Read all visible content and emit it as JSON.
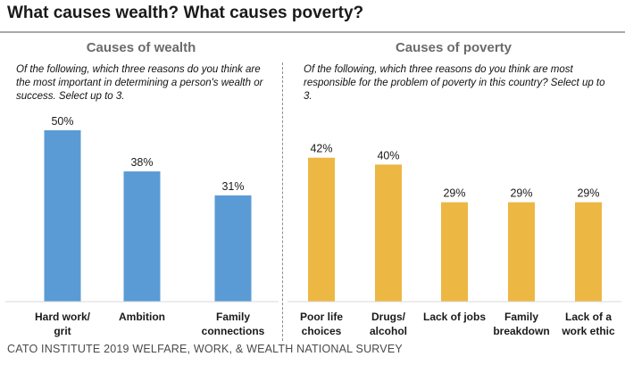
{
  "title": "What causes wealth? What causes poverty?",
  "source": "CATO INSTITUTE 2019 WELFARE, WORK, & WEALTH NATIONAL SURVEY",
  "colors": {
    "wealth_bar": "#5b9bd5",
    "poverty_bar": "#edb744",
    "divider": "#8c8c8c"
  },
  "chart_data": [
    {
      "type": "bar",
      "title": "Causes of wealth",
      "subtitle": "Of the following, which three reasons do you think are the most important in determining a person's wealth or success. Select up to 3.",
      "categories": [
        [
          "Hard work/",
          "grit"
        ],
        [
          "Ambition"
        ],
        [
          "Family",
          "connections"
        ]
      ],
      "values": [
        50,
        38,
        31
      ],
      "value_labels": [
        "50%",
        "38%",
        "31%"
      ],
      "ylim": [
        0,
        55
      ],
      "grid": false,
      "color": "#5b9bd5"
    },
    {
      "type": "bar",
      "title": "Causes of poverty",
      "subtitle": "Of the following, which three reasons do you think are most responsible for the problem of poverty in this country? Select up to 3.",
      "categories": [
        [
          "Poor life",
          "choices"
        ],
        [
          "Drugs/",
          "alcohol"
        ],
        [
          "Lack of jobs"
        ],
        [
          "Family",
          "breakdown"
        ],
        [
          "Lack of a",
          "work ethic"
        ]
      ],
      "values": [
        42,
        40,
        29,
        29,
        29
      ],
      "value_labels": [
        "42%",
        "40%",
        "29%",
        "29%",
        "29%"
      ],
      "ylim": [
        0,
        55
      ],
      "grid": false,
      "color": "#edb744"
    }
  ]
}
